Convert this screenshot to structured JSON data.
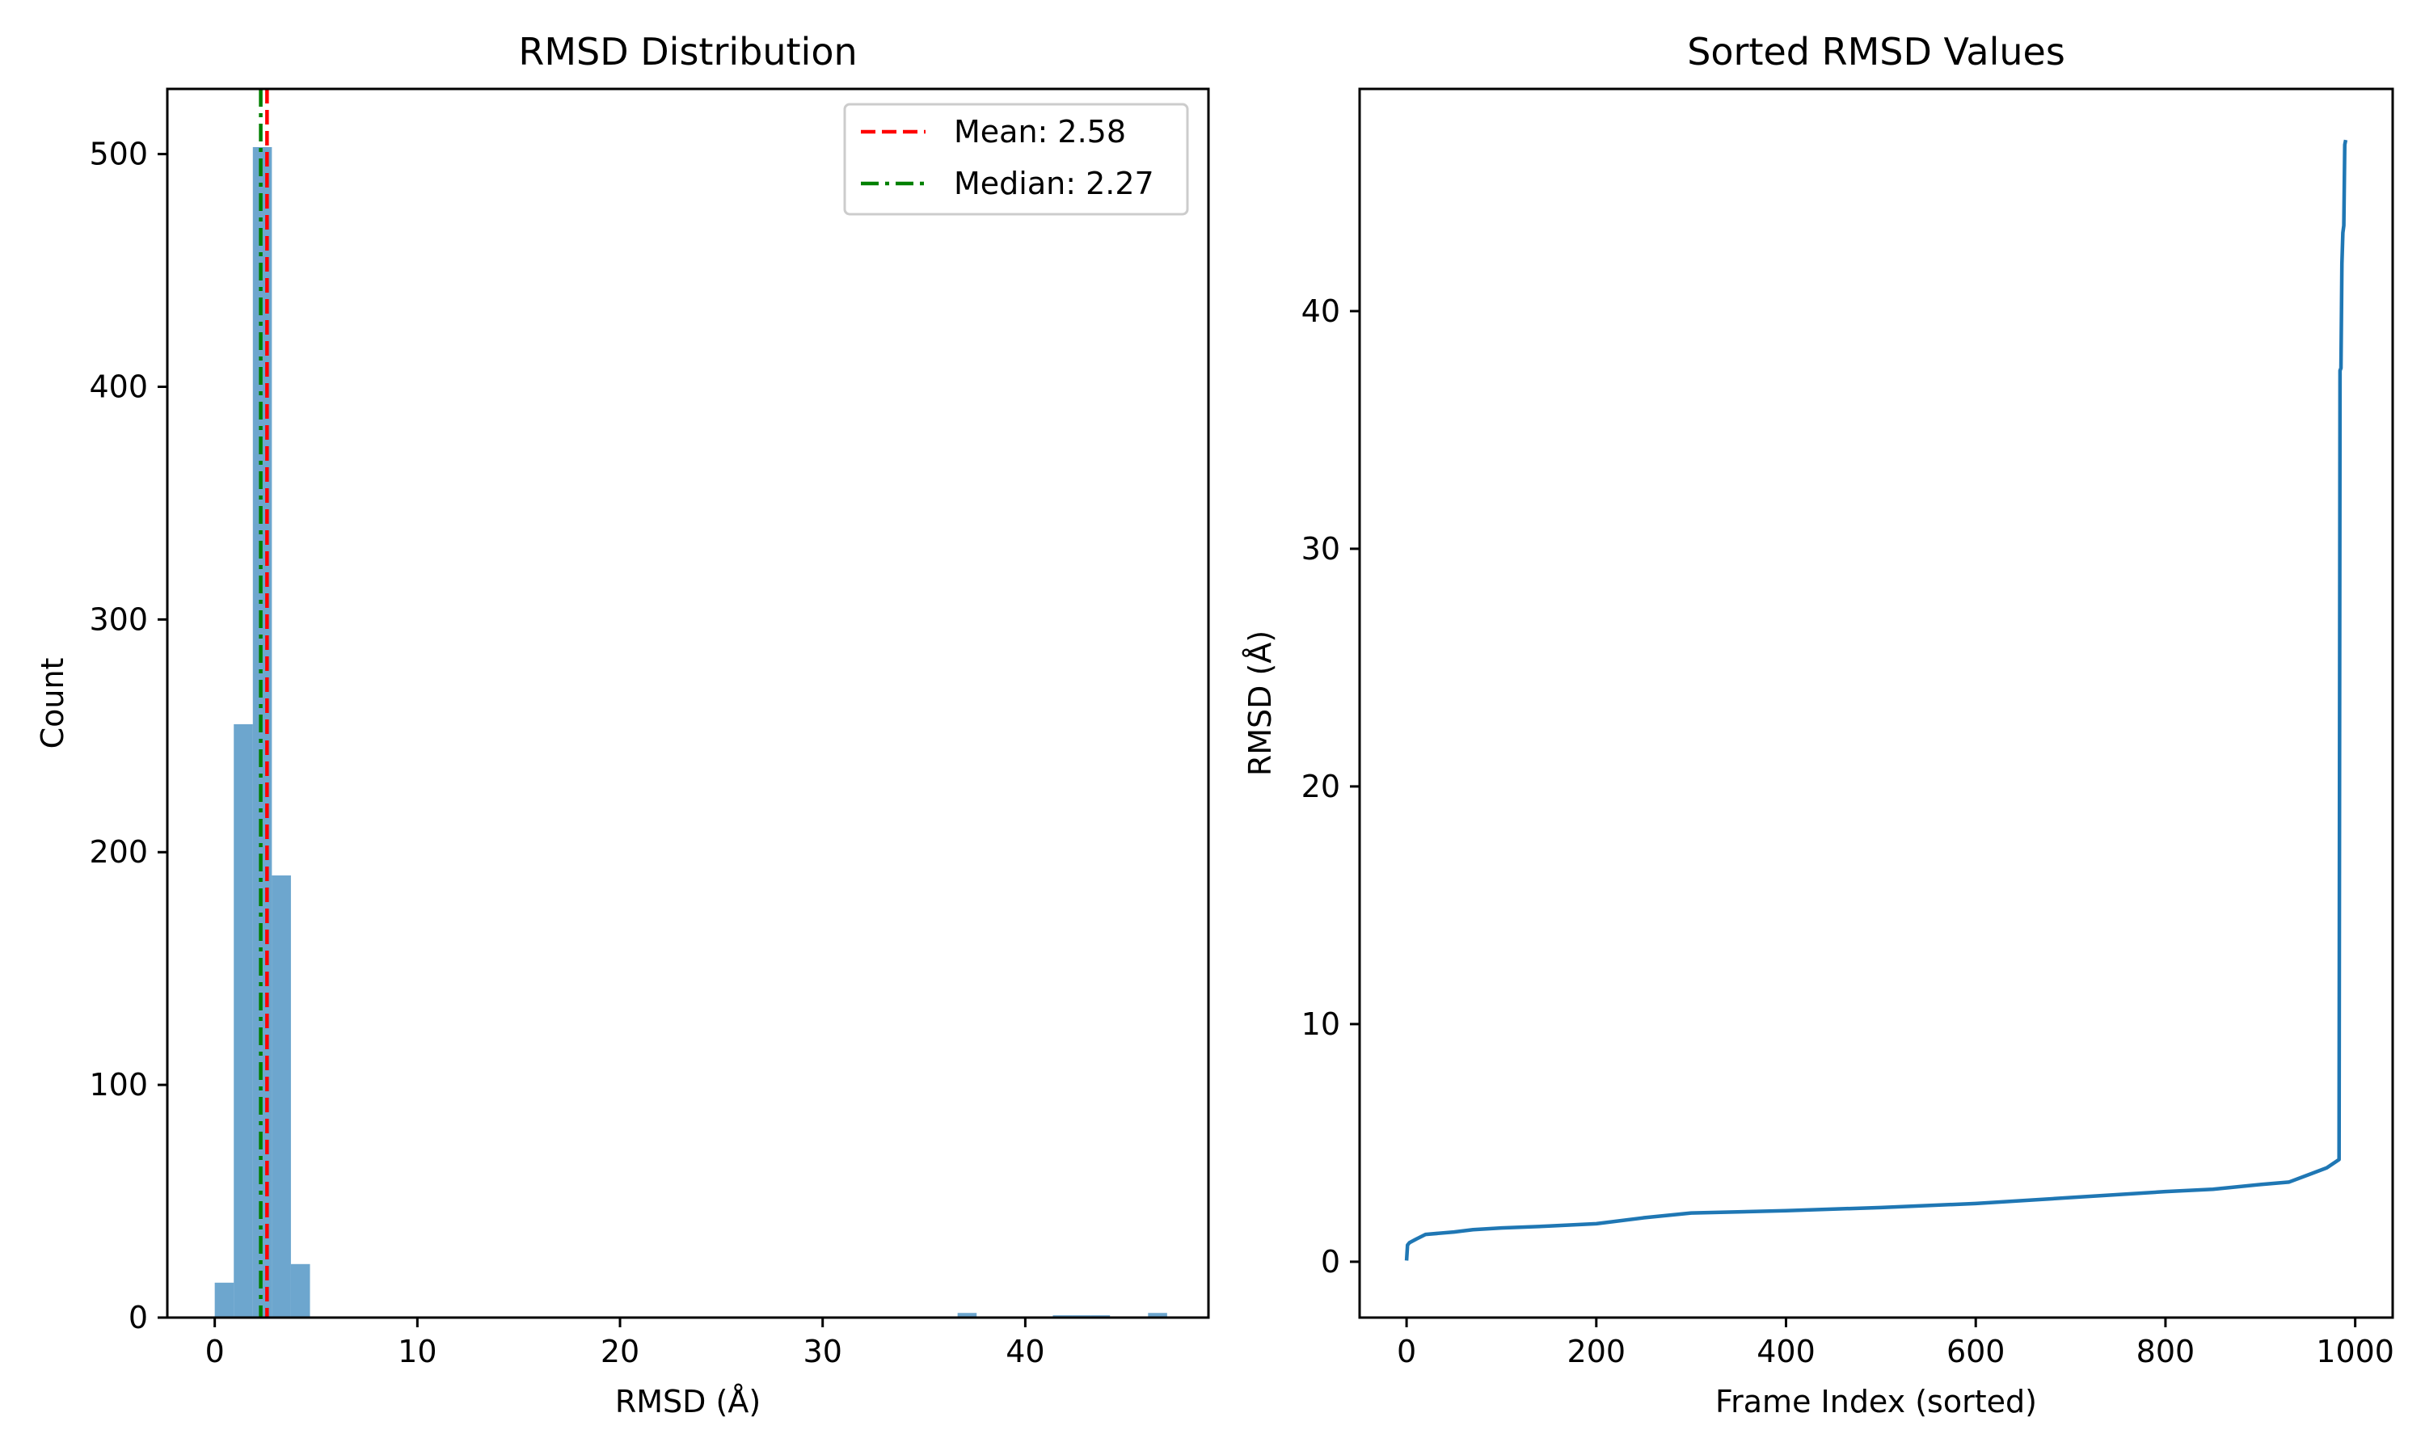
{
  "chart_data": [
    {
      "type": "bar",
      "title": "RMSD Distribution",
      "xlabel": "RMSD (Å)",
      "ylabel": "Count",
      "xlim": [
        -2.34,
        49.04
      ],
      "ylim": [
        0,
        528
      ],
      "xticks": [
        0,
        10,
        20,
        30,
        40
      ],
      "yticks": [
        0,
        100,
        200,
        300,
        400,
        500
      ],
      "bar_color": "#1f77b4",
      "bar_opacity": 0.65,
      "bins": [
        {
          "x0": 0.0,
          "x1": 0.94,
          "count": 15
        },
        {
          "x0": 0.94,
          "x1": 1.88,
          "count": 255
        },
        {
          "x0": 1.88,
          "x1": 2.82,
          "count": 503
        },
        {
          "x0": 2.82,
          "x1": 3.76,
          "count": 190
        },
        {
          "x0": 3.76,
          "x1": 4.7,
          "count": 23
        },
        {
          "x0": 36.66,
          "x1": 37.6,
          "count": 2
        },
        {
          "x0": 41.36,
          "x1": 42.3,
          "count": 1
        },
        {
          "x0": 42.3,
          "x1": 43.24,
          "count": 1
        },
        {
          "x0": 43.24,
          "x1": 44.18,
          "count": 1
        },
        {
          "x0": 46.06,
          "x1": 47.0,
          "count": 2
        }
      ],
      "reference_lines": [
        {
          "label": "Mean: 2.58",
          "value": 2.58,
          "color": "#ff0000",
          "style": "dashed"
        },
        {
          "label": "Median: 2.27",
          "value": 2.27,
          "color": "#008000",
          "style": "dashdot"
        }
      ],
      "legend": "top-right",
      "grid": false
    },
    {
      "type": "line",
      "title": "Sorted RMSD Values",
      "xlabel": "Frame Index (sorted)",
      "ylabel": "RMSD (Å)",
      "xlim": [
        -49.5,
        1039.5
      ],
      "ylim": [
        -2.35,
        49.35
      ],
      "xticks": [
        0,
        200,
        400,
        600,
        800,
        1000
      ],
      "yticks": [
        0,
        10,
        20,
        30,
        40
      ],
      "line_color": "#1f77b4",
      "grid": false,
      "series": [
        {
          "x": [
            0,
            1,
            3,
            10,
            20,
            50,
            70,
            100,
            150,
            200,
            250,
            300,
            400,
            500,
            600,
            700,
            800,
            850,
            900,
            930,
            950,
            970,
            983,
            984,
            985,
            986,
            987,
            988,
            989,
            990
          ],
          "values": [
            0.05,
            0.7,
            0.8,
            0.95,
            1.15,
            1.25,
            1.35,
            1.42,
            1.5,
            1.6,
            1.85,
            2.05,
            2.15,
            2.28,
            2.45,
            2.7,
            2.95,
            3.05,
            3.25,
            3.35,
            3.65,
            3.95,
            4.3,
            37.5,
            37.6,
            42.0,
            43.3,
            43.6,
            47.0,
            47.2
          ]
        }
      ]
    }
  ]
}
